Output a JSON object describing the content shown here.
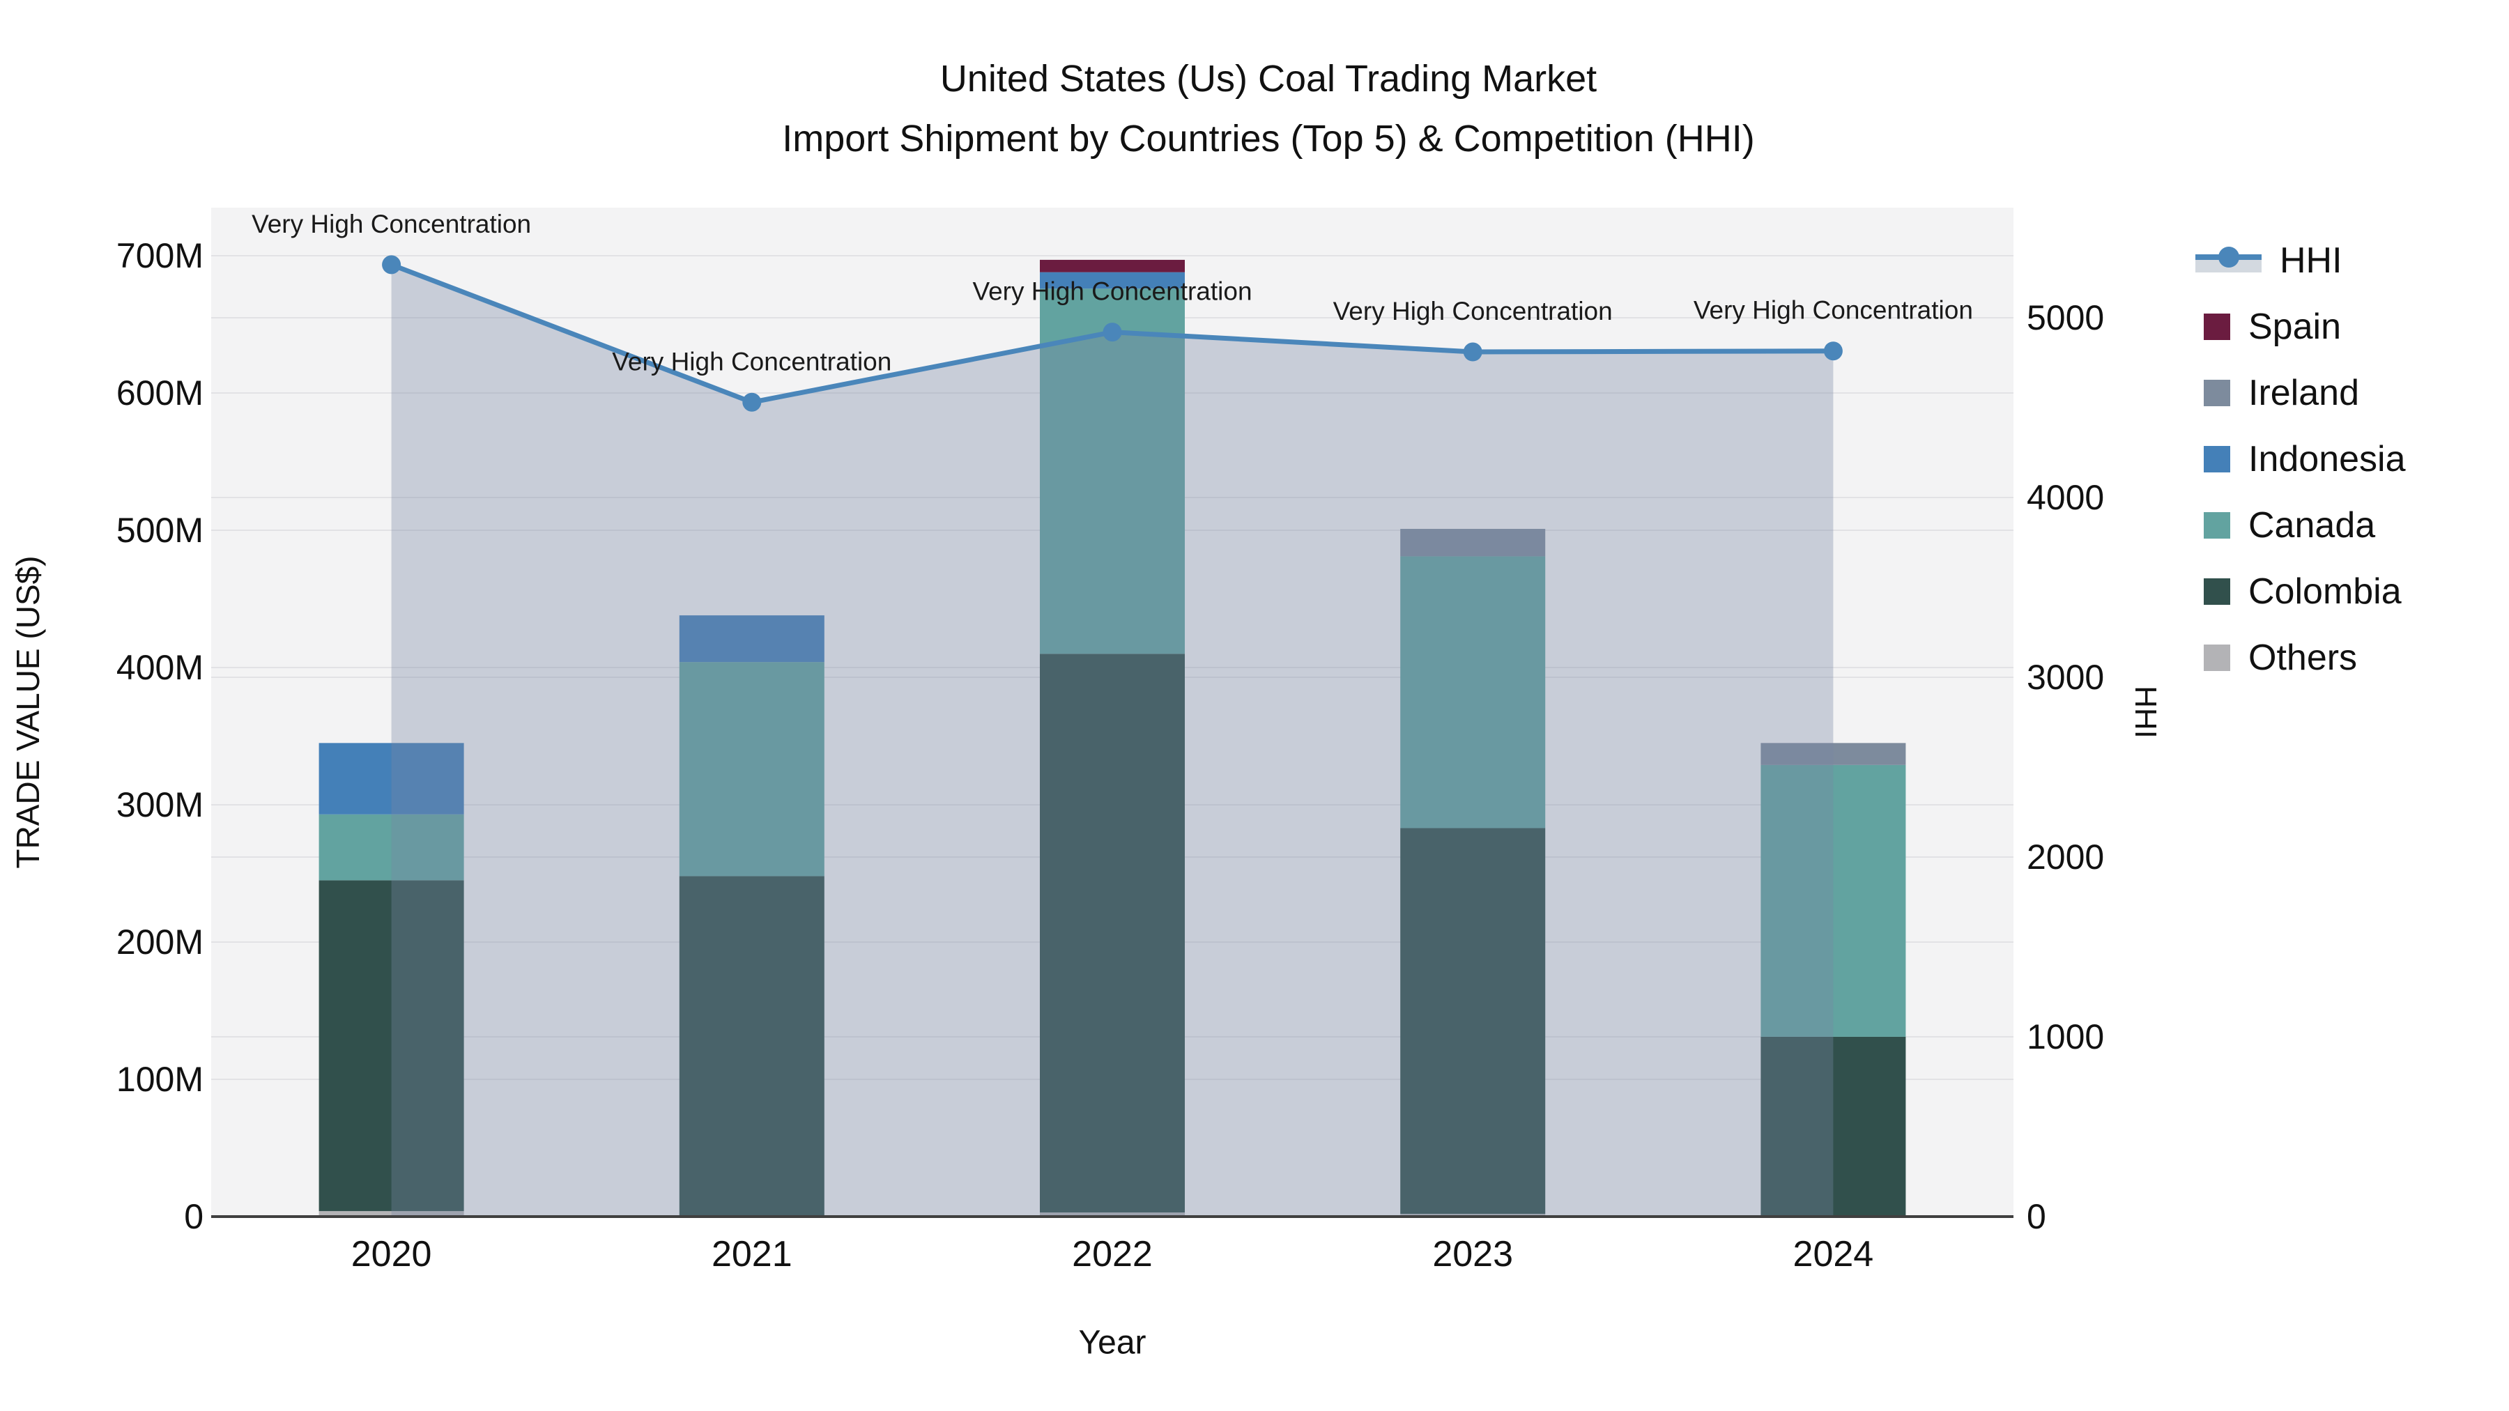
{
  "title": {
    "line1": "United States (Us) Coal Trading Market",
    "line2": "Import Shipment by Countries (Top 5) & Competition (HHI)"
  },
  "axes": {
    "left": {
      "label": "TRADE VALUE (US$)",
      "tick_values": [
        0,
        100,
        200,
        300,
        400,
        500,
        600,
        700
      ],
      "tick_labels": [
        "0",
        "100M",
        "200M",
        "300M",
        "400M",
        "500M",
        "600M",
        "700M"
      ],
      "unit": "M US$"
    },
    "right": {
      "label": "HHI",
      "tick_values": [
        0,
        1000,
        2000,
        3000,
        4000,
        5000
      ],
      "tick_labels": [
        "0",
        "1000",
        "2000",
        "3000",
        "4000",
        "5000"
      ]
    },
    "x": {
      "label": "Year",
      "categories": [
        "2020",
        "2021",
        "2022",
        "2023",
        "2024"
      ]
    }
  },
  "chart_data": {
    "type": "bar+line",
    "title": "United States (Us) Coal Trading Market — Import Shipment by Countries (Top 5) & Competition (HHI)",
    "categories": [
      "2020",
      "2021",
      "2022",
      "2023",
      "2024"
    ],
    "ylim_left_millions": [
      0,
      700
    ],
    "ylim_right_hhi": [
      0,
      5000
    ],
    "grid": true,
    "legend_position": "right",
    "bar_series_bottom_to_top": [
      {
        "name": "Others",
        "color": "#b3b3b6",
        "values": [
          4,
          0,
          3,
          2,
          0
        ]
      },
      {
        "name": "Colombia",
        "color": "#31504c",
        "values": [
          241,
          248,
          407,
          281,
          131
        ]
      },
      {
        "name": "Canada",
        "color": "#62a3a0",
        "values": [
          48,
          156,
          266,
          198,
          198
        ]
      },
      {
        "name": "Indonesia",
        "color": "#4480b8",
        "values": [
          52,
          34,
          12,
          0,
          0
        ]
      },
      {
        "name": "Ireland",
        "color": "#7d8b9d",
        "values": [
          0,
          0,
          0,
          20,
          16
        ]
      },
      {
        "name": "Spain",
        "color": "#6b1c40",
        "values": [
          0,
          0,
          9,
          0,
          0
        ]
      }
    ],
    "bar_totals_millions": [
      345,
      438,
      697,
      501,
      345
    ],
    "line_series": {
      "name": "HHI",
      "color": "#4a86ba",
      "area_color": "rgba(119,136,164,0.35)",
      "values": [
        5295,
        4530,
        4920,
        4810,
        4815
      ]
    },
    "annotations": [
      "Very High Concentration",
      "Very High Concentration",
      "Very High Concentration",
      "Very High Concentration",
      "Very High Concentration"
    ]
  },
  "legend": {
    "items": [
      {
        "label": "HHI",
        "type": "line",
        "color": "#4a86ba",
        "band_color": "#d3d9e0"
      },
      {
        "label": "Spain",
        "type": "patch",
        "color": "#6b1c40"
      },
      {
        "label": "Ireland",
        "type": "patch",
        "color": "#7d8b9d"
      },
      {
        "label": "Indonesia",
        "type": "patch",
        "color": "#4480b8"
      },
      {
        "label": "Canada",
        "type": "patch",
        "color": "#62a3a0"
      },
      {
        "label": "Colombia",
        "type": "patch",
        "color": "#31504c"
      },
      {
        "label": "Others",
        "type": "patch",
        "color": "#b3b3b6"
      }
    ]
  },
  "style": {
    "plot_bg": "#f3f3f4",
    "gridline_color": "#e2e2e5",
    "axis_line_color": "#404040",
    "text_color": "#111111",
    "annotation_color": "#1a1a1a"
  }
}
